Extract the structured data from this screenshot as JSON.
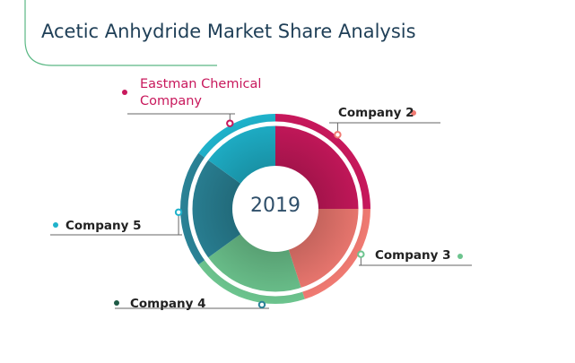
{
  "chart_data": {
    "type": "pie",
    "title": "Acetic Anhydride Market Share Analysis",
    "center_label": "2019",
    "slices": [
      {
        "name": "Eastman Chemical Company",
        "label_lines": [
          "Eastman Chemical",
          "Company"
        ],
        "start_deg": -90,
        "end_deg": 0,
        "color": "#c8185c",
        "label_color": "#c8185c"
      },
      {
        "name": "Company 2",
        "label_lines": [
          "Company 2"
        ],
        "start_deg": 0,
        "end_deg": 72,
        "color": "#f07a72",
        "label_color": "#222222"
      },
      {
        "name": "Company 3",
        "label_lines": [
          "Company 3"
        ],
        "start_deg": 72,
        "end_deg": 144,
        "color": "#6cc48e",
        "label_color": "#222222"
      },
      {
        "name": "Company 4",
        "label_lines": [
          "Company 4"
        ],
        "start_deg": 144,
        "end_deg": 216,
        "color": "#2a8296",
        "label_color": "#222222"
      },
      {
        "name": "Company 5",
        "label_lines": [
          "Company 5"
        ],
        "start_deg": 216,
        "end_deg": 270,
        "color": "#1fb2cb",
        "label_color": "#222222"
      }
    ],
    "legend": "leader-line labels around the ring",
    "colors": {
      "title": "#1f3f57",
      "accent_line": "#5ab884",
      "dot_company4": "#1e5a45"
    }
  }
}
